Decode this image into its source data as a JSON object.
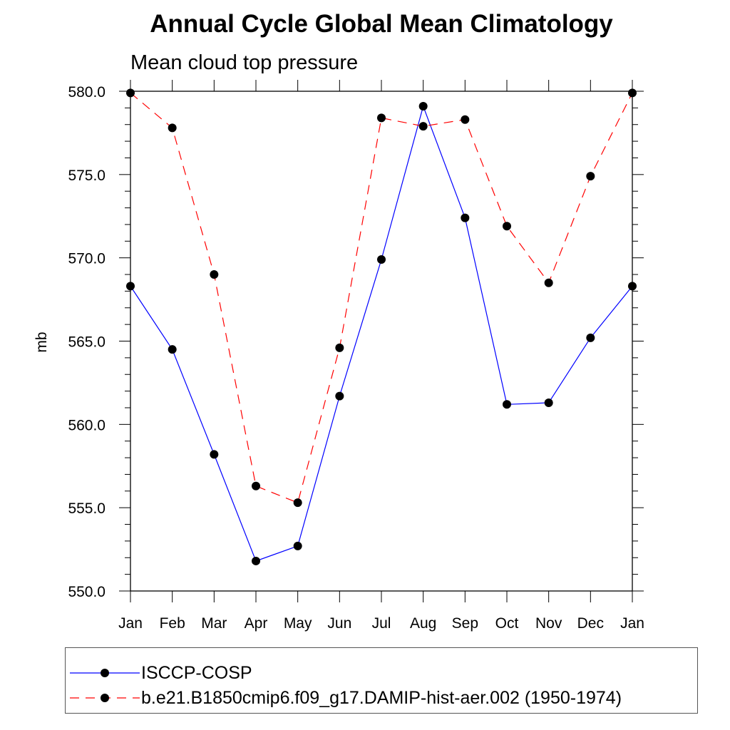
{
  "chart_data": {
    "type": "line",
    "title": "Annual Cycle Global Mean Climatology",
    "subtitle": "Mean cloud top pressure",
    "xlabel": "",
    "ylabel": "mb",
    "categories": [
      "Jan",
      "Feb",
      "Mar",
      "Apr",
      "May",
      "Jun",
      "Jul",
      "Aug",
      "Sep",
      "Oct",
      "Nov",
      "Dec",
      "Jan"
    ],
    "ylim": [
      550.0,
      580.0
    ],
    "yticks": [
      "580.0",
      "575.0",
      "570.0",
      "565.0",
      "560.0",
      "555.0",
      "550.0"
    ],
    "series": [
      {
        "name": "ISCCP-COSP",
        "color": "#0000ff",
        "style": "solid",
        "values": [
          568.3,
          564.5,
          558.2,
          551.8,
          552.7,
          561.7,
          569.9,
          579.1,
          572.4,
          561.2,
          561.3,
          565.2,
          568.3
        ]
      },
      {
        "name": "b.e21.B1850cmip6.f09_g17.DAMIP-hist-aer.002 (1950-1974)",
        "color": "#ff0000",
        "style": "dashed",
        "values": [
          579.9,
          577.8,
          569.0,
          556.3,
          555.3,
          564.6,
          578.4,
          577.9,
          578.3,
          571.9,
          568.5,
          574.9,
          579.9
        ]
      }
    ],
    "legend": "bottom"
  }
}
